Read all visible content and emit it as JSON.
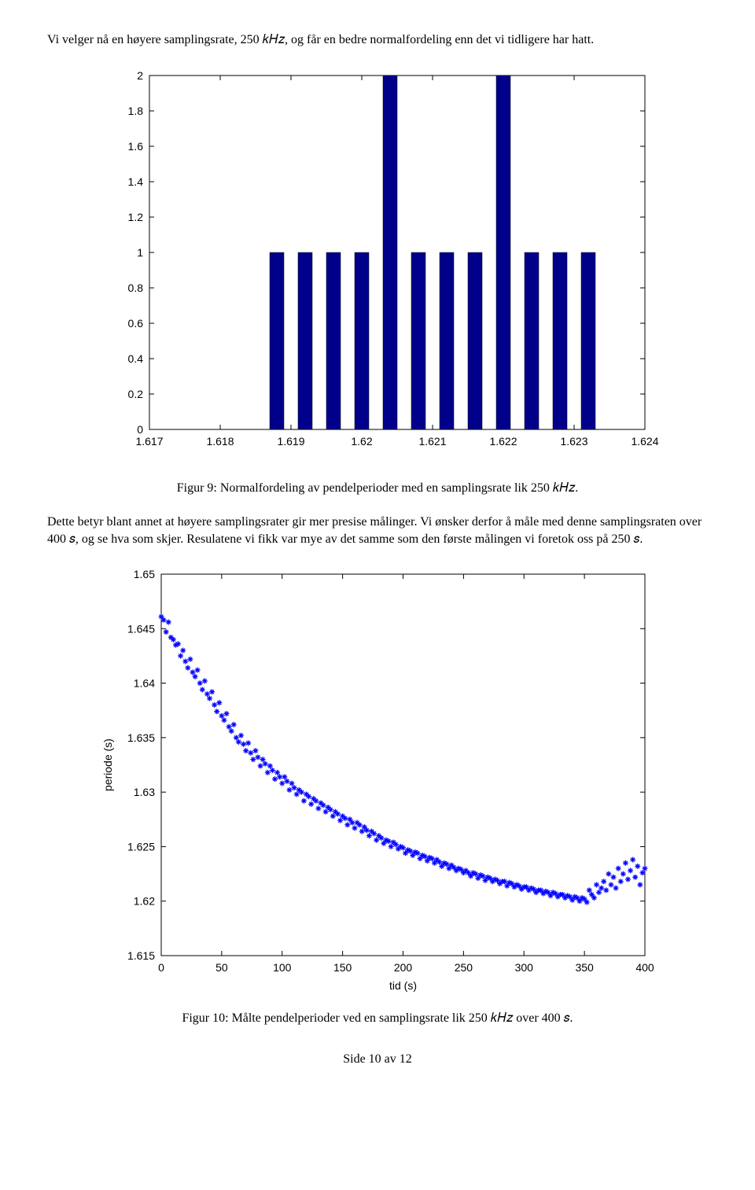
{
  "intro_text": "Vi velger nå en høyere samplingsrate, 250 𝑘𝐻𝑧, og får en bedre normalfordeling enn det vi tidligere har hatt.",
  "fig9_caption": "Figur 9: Normalfordeling av pendelperioder med en samplingsrate lik 250 𝑘𝐻𝑧.",
  "mid_text": "Dette betyr blant annet at høyere samplingsrater gir mer presise målinger. Vi ønsker derfor å måle med denne samplingsraten over 400 𝑠, og se hva som skjer. Resulatene vi fikk var mye av det samme som den første målingen vi foretok oss på 250 𝑠.",
  "fig10_caption": "Figur 10: Målte pendelperioder ved en samplingsrate lik 250 𝑘𝐻𝑧 over 400 𝑠.",
  "footer_text": "Side 10 av 12",
  "fig9": {
    "type": "bar",
    "background_color": "#ffffff",
    "axis_color": "#000000",
    "bar_color": "#00008b",
    "bar_edge_color": "#000000",
    "font_family": "Arial",
    "tick_fontsize": 14,
    "xlim": [
      1.617,
      1.624
    ],
    "ylim": [
      0,
      2
    ],
    "xticks": [
      1.617,
      1.618,
      1.619,
      1.62,
      1.621,
      1.622,
      1.623,
      1.624
    ],
    "yticks": [
      0,
      0.2,
      0.4,
      0.6,
      0.8,
      1,
      1.2,
      1.4,
      1.6,
      1.8,
      2
    ],
    "bar_halfwidth": 0.0001,
    "bars": [
      {
        "x": 1.6188,
        "y": 1
      },
      {
        "x": 1.6192,
        "y": 1
      },
      {
        "x": 1.6196,
        "y": 1
      },
      {
        "x": 1.62,
        "y": 1
      },
      {
        "x": 1.6204,
        "y": 2
      },
      {
        "x": 1.6208,
        "y": 1
      },
      {
        "x": 1.6212,
        "y": 1
      },
      {
        "x": 1.6216,
        "y": 1
      },
      {
        "x": 1.622,
        "y": 2
      },
      {
        "x": 1.6224,
        "y": 1
      },
      {
        "x": 1.6228,
        "y": 1
      },
      {
        "x": 1.6232,
        "y": 1
      }
    ]
  },
  "fig10": {
    "type": "scatter",
    "background_color": "#ffffff",
    "axis_color": "#000000",
    "marker_color": "#0000ff",
    "marker": "*",
    "marker_size": 7,
    "font_family": "Arial",
    "tick_fontsize": 14,
    "label_fontsize": 14,
    "xlabel": "tid (s)",
    "ylabel": "periode (s)",
    "xlim": [
      0,
      400
    ],
    "ylim": [
      1.615,
      1.65
    ],
    "xticks": [
      0,
      50,
      100,
      150,
      200,
      250,
      300,
      350,
      400
    ],
    "yticks": [
      1.615,
      1.62,
      1.625,
      1.63,
      1.635,
      1.64,
      1.645,
      1.65
    ],
    "points": [
      [
        0,
        1.6461
      ],
      [
        2,
        1.6458
      ],
      [
        4,
        1.6447
      ],
      [
        6,
        1.6456
      ],
      [
        8,
        1.6442
      ],
      [
        10,
        1.644
      ],
      [
        12,
        1.6435
      ],
      [
        14,
        1.6436
      ],
      [
        16,
        1.6425
      ],
      [
        18,
        1.643
      ],
      [
        20,
        1.642
      ],
      [
        22,
        1.6414
      ],
      [
        24,
        1.6422
      ],
      [
        26,
        1.641
      ],
      [
        28,
        1.6406
      ],
      [
        30,
        1.6412
      ],
      [
        32,
        1.64
      ],
      [
        34,
        1.6394
      ],
      [
        36,
        1.6402
      ],
      [
        38,
        1.639
      ],
      [
        40,
        1.6386
      ],
      [
        42,
        1.6392
      ],
      [
        44,
        1.638
      ],
      [
        46,
        1.6374
      ],
      [
        48,
        1.6382
      ],
      [
        50,
        1.637
      ],
      [
        52,
        1.6366
      ],
      [
        54,
        1.6372
      ],
      [
        56,
        1.636
      ],
      [
        58,
        1.6356
      ],
      [
        60,
        1.6362
      ],
      [
        62,
        1.635
      ],
      [
        64,
        1.6346
      ],
      [
        66,
        1.6352
      ],
      [
        68,
        1.6344
      ],
      [
        70,
        1.6338
      ],
      [
        72,
        1.6345
      ],
      [
        74,
        1.6336
      ],
      [
        76,
        1.633
      ],
      [
        78,
        1.6338
      ],
      [
        80,
        1.6332
      ],
      [
        82,
        1.6324
      ],
      [
        84,
        1.633
      ],
      [
        86,
        1.6326
      ],
      [
        88,
        1.6318
      ],
      [
        90,
        1.6324
      ],
      [
        92,
        1.632
      ],
      [
        94,
        1.6312
      ],
      [
        96,
        1.6318
      ],
      [
        98,
        1.6314
      ],
      [
        100,
        1.6308
      ],
      [
        102,
        1.6314
      ],
      [
        104,
        1.631
      ],
      [
        106,
        1.6302
      ],
      [
        108,
        1.6308
      ],
      [
        110,
        1.6304
      ],
      [
        112,
        1.6298
      ],
      [
        114,
        1.6302
      ],
      [
        116,
        1.63
      ],
      [
        118,
        1.6292
      ],
      [
        120,
        1.6298
      ],
      [
        122,
        1.6296
      ],
      [
        124,
        1.6289
      ],
      [
        126,
        1.6294
      ],
      [
        128,
        1.6292
      ],
      [
        130,
        1.6285
      ],
      [
        132,
        1.629
      ],
      [
        134,
        1.6288
      ],
      [
        136,
        1.6282
      ],
      [
        138,
        1.6286
      ],
      [
        140,
        1.6284
      ],
      [
        142,
        1.6278
      ],
      [
        144,
        1.6282
      ],
      [
        146,
        1.628
      ],
      [
        148,
        1.6274
      ],
      [
        150,
        1.6278
      ],
      [
        152,
        1.6276
      ],
      [
        154,
        1.627
      ],
      [
        156,
        1.6275
      ],
      [
        158,
        1.6272
      ],
      [
        160,
        1.6267
      ],
      [
        162,
        1.6272
      ],
      [
        164,
        1.627
      ],
      [
        166,
        1.6264
      ],
      [
        168,
        1.6268
      ],
      [
        170,
        1.6265
      ],
      [
        172,
        1.626
      ],
      [
        174,
        1.6264
      ],
      [
        176,
        1.6262
      ],
      [
        178,
        1.6256
      ],
      [
        180,
        1.626
      ],
      [
        182,
        1.6258
      ],
      [
        184,
        1.6253
      ],
      [
        186,
        1.6256
      ],
      [
        188,
        1.6255
      ],
      [
        190,
        1.625
      ],
      [
        192,
        1.6254
      ],
      [
        194,
        1.6252
      ],
      [
        196,
        1.6248
      ],
      [
        198,
        1.625
      ],
      [
        200,
        1.6249
      ],
      [
        202,
        1.6244
      ],
      [
        204,
        1.6247
      ],
      [
        206,
        1.6246
      ],
      [
        208,
        1.6242
      ],
      [
        210,
        1.6245
      ],
      [
        212,
        1.6244
      ],
      [
        214,
        1.6239
      ],
      [
        216,
        1.6242
      ],
      [
        218,
        1.6241
      ],
      [
        220,
        1.6237
      ],
      [
        222,
        1.624
      ],
      [
        224,
        1.6239
      ],
      [
        226,
        1.6235
      ],
      [
        228,
        1.6238
      ],
      [
        230,
        1.6236
      ],
      [
        232,
        1.6232
      ],
      [
        234,
        1.6235
      ],
      [
        236,
        1.6234
      ],
      [
        238,
        1.623
      ],
      [
        240,
        1.6233
      ],
      [
        242,
        1.6231
      ],
      [
        244,
        1.6228
      ],
      [
        246,
        1.623
      ],
      [
        248,
        1.6229
      ],
      [
        250,
        1.6226
      ],
      [
        252,
        1.6228
      ],
      [
        254,
        1.6226
      ],
      [
        256,
        1.6223
      ],
      [
        258,
        1.6226
      ],
      [
        260,
        1.6225
      ],
      [
        262,
        1.6221
      ],
      [
        264,
        1.6224
      ],
      [
        266,
        1.6223
      ],
      [
        268,
        1.6219
      ],
      [
        270,
        1.6222
      ],
      [
        272,
        1.6221
      ],
      [
        274,
        1.6218
      ],
      [
        276,
        1.622
      ],
      [
        278,
        1.6219
      ],
      [
        280,
        1.6216
      ],
      [
        282,
        1.6218
      ],
      [
        284,
        1.6218
      ],
      [
        286,
        1.6214
      ],
      [
        288,
        1.6217
      ],
      [
        290,
        1.6216
      ],
      [
        292,
        1.6213
      ],
      [
        294,
        1.6215
      ],
      [
        296,
        1.6214
      ],
      [
        298,
        1.6211
      ],
      [
        300,
        1.6213
      ],
      [
        302,
        1.6213
      ],
      [
        304,
        1.621
      ],
      [
        306,
        1.6212
      ],
      [
        308,
        1.6211
      ],
      [
        310,
        1.6208
      ],
      [
        312,
        1.621
      ],
      [
        314,
        1.621
      ],
      [
        316,
        1.6207
      ],
      [
        318,
        1.6209
      ],
      [
        320,
        1.6208
      ],
      [
        322,
        1.6205
      ],
      [
        324,
        1.6208
      ],
      [
        326,
        1.6207
      ],
      [
        328,
        1.6204
      ],
      [
        330,
        1.6206
      ],
      [
        332,
        1.6206
      ],
      [
        334,
        1.6203
      ],
      [
        336,
        1.6205
      ],
      [
        338,
        1.6204
      ],
      [
        340,
        1.6201
      ],
      [
        342,
        1.6204
      ],
      [
        344,
        1.6203
      ],
      [
        346,
        1.62
      ],
      [
        348,
        1.6203
      ],
      [
        350,
        1.6202
      ],
      [
        352,
        1.6199
      ],
      [
        354,
        1.621
      ],
      [
        356,
        1.6206
      ],
      [
        358,
        1.6203
      ],
      [
        360,
        1.6215
      ],
      [
        362,
        1.6208
      ],
      [
        364,
        1.6212
      ],
      [
        366,
        1.6218
      ],
      [
        368,
        1.621
      ],
      [
        370,
        1.6225
      ],
      [
        372,
        1.6215
      ],
      [
        374,
        1.6222
      ],
      [
        376,
        1.6212
      ],
      [
        378,
        1.623
      ],
      [
        380,
        1.6218
      ],
      [
        382,
        1.6225
      ],
      [
        384,
        1.6235
      ],
      [
        386,
        1.622
      ],
      [
        388,
        1.6228
      ],
      [
        390,
        1.6238
      ],
      [
        392,
        1.6222
      ],
      [
        394,
        1.6232
      ],
      [
        396,
        1.6215
      ],
      [
        398,
        1.6226
      ],
      [
        400,
        1.623
      ]
    ]
  }
}
